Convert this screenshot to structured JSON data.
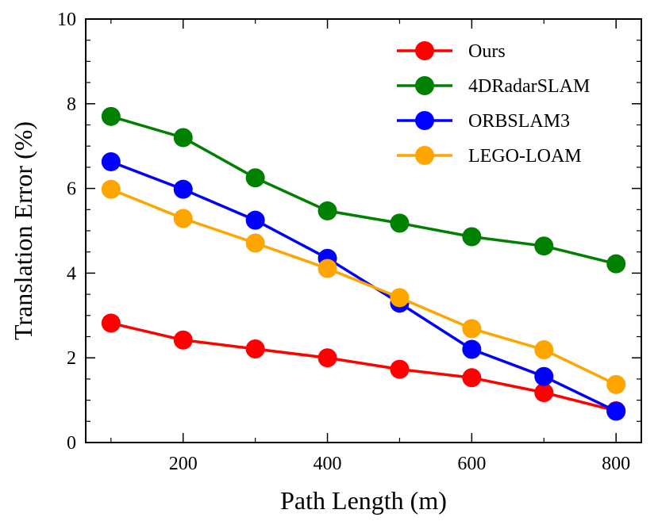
{
  "chart_data": {
    "type": "line",
    "title": "",
    "xlabel": "Path Length (m)",
    "ylabel": "Translation Error (%)",
    "xlim": [
      65,
      835
    ],
    "ylim": [
      0,
      10
    ],
    "xticks": [
      200,
      400,
      600,
      800
    ],
    "yticks": [
      0,
      2,
      4,
      6,
      8,
      10
    ],
    "x": [
      100,
      200,
      300,
      400,
      500,
      600,
      700,
      800
    ],
    "legend_position": "top-right",
    "series": [
      {
        "name": "Ours",
        "color": "#ff0000",
        "values": [
          2.82,
          2.42,
          2.21,
          2.0,
          1.73,
          1.53,
          1.18,
          0.75
        ]
      },
      {
        "name": "4DRadarSLAM",
        "color": "#008000",
        "values": [
          7.7,
          7.2,
          6.25,
          5.47,
          5.18,
          4.86,
          4.64,
          4.22
        ]
      },
      {
        "name": "ORBSLAM3",
        "color": "#0000ff",
        "values": [
          6.63,
          5.98,
          5.25,
          4.35,
          3.29,
          2.2,
          1.56,
          0.74
        ]
      },
      {
        "name": "LEGO-LOAM",
        "color": "#ffa500",
        "values": [
          5.98,
          5.29,
          4.71,
          4.11,
          3.42,
          2.69,
          2.19,
          1.37
        ]
      }
    ]
  }
}
